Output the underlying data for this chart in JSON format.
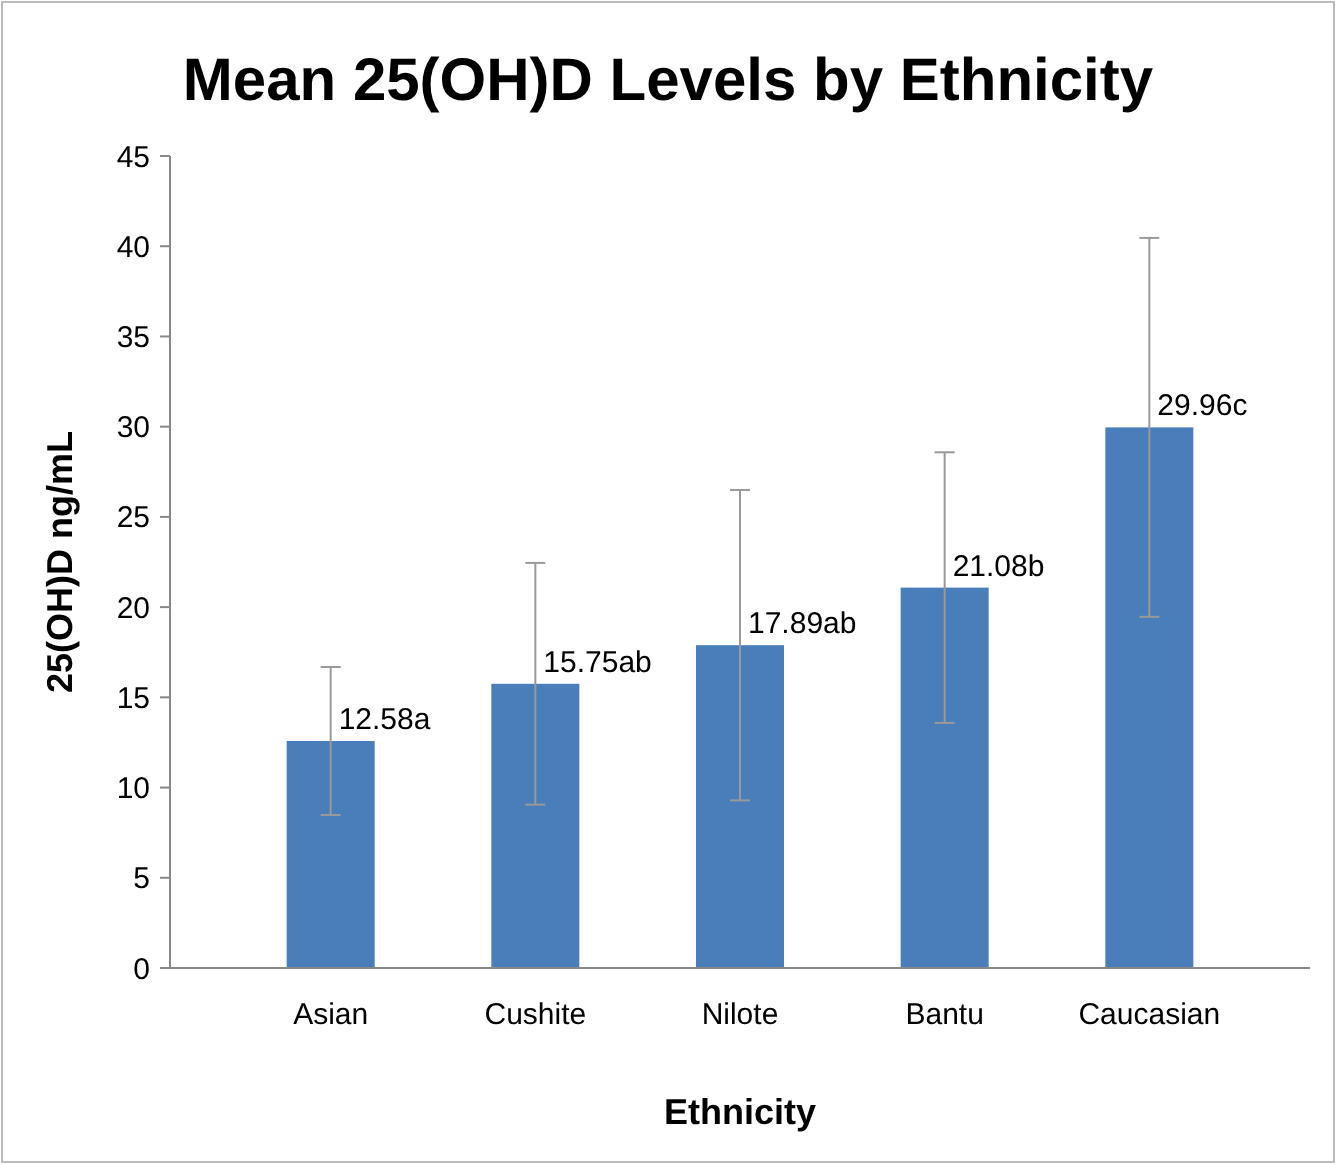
{
  "chart_data": {
    "type": "bar",
    "title": "Mean 25(OH)D Levels by Ethnicity",
    "xlabel": "Ethnicity",
    "ylabel": "25(OH)D ng/mL",
    "categories": [
      "Asian",
      "Cushite",
      "Nilote",
      "Bantu",
      "Caucasian"
    ],
    "values": [
      12.58,
      15.75,
      17.89,
      21.08,
      29.96
    ],
    "value_labels": [
      "12.58a",
      "15.75ab",
      "17.89ab",
      "21.08b",
      "29.96c"
    ],
    "errors": [
      4.1,
      6.7,
      8.6,
      7.5,
      10.5
    ],
    "color": "#4a7ebb",
    "ylim": [
      0,
      45
    ],
    "yticks": [
      0,
      5,
      10,
      15,
      20,
      25,
      30,
      35,
      40,
      45
    ],
    "grid": false
  }
}
